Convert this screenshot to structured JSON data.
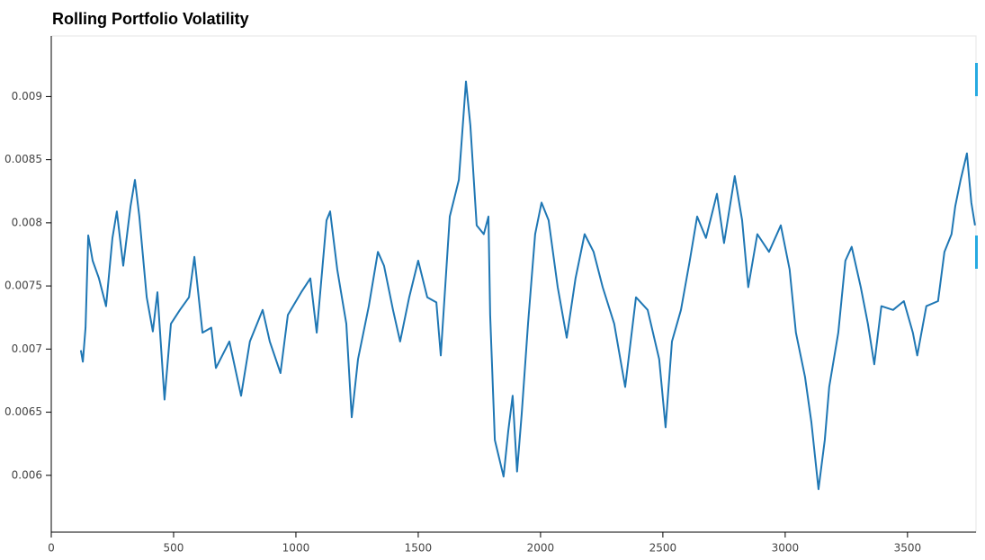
{
  "chart_data": {
    "type": "line",
    "title": "Rolling Portfolio Volatility",
    "x": [
      121,
      129,
      140,
      151,
      169,
      195,
      224,
      250,
      268,
      294,
      324,
      342,
      360,
      390,
      415,
      434,
      463,
      489,
      526,
      563,
      585,
      618,
      654,
      673,
      728,
      776,
      812,
      864,
      893,
      937,
      967,
      1022,
      1059,
      1085,
      1125,
      1140,
      1169,
      1206,
      1228,
      1254,
      1298,
      1335,
      1360,
      1397,
      1426,
      1463,
      1500,
      1537,
      1574,
      1592,
      1629,
      1666,
      1695,
      1713,
      1739,
      1768,
      1787,
      1794,
      1813,
      1849,
      1868,
      1886,
      1904,
      1923,
      1949,
      1978,
      2004,
      2033,
      2070,
      2107,
      2143,
      2180,
      2217,
      2254,
      2301,
      2346,
      2390,
      2438,
      2485,
      2511,
      2537,
      2574,
      2610,
      2640,
      2676,
      2721,
      2750,
      2794,
      2824,
      2849,
      2886,
      2934,
      2982,
      3018,
      3044,
      3081,
      3107,
      3136,
      3162,
      3180,
      3217,
      3246,
      3272,
      3309,
      3338,
      3364,
      3393,
      3441,
      3485,
      3522,
      3540,
      3577,
      3625,
      3651,
      3680,
      3695,
      3717,
      3743,
      3761,
      3776
    ],
    "series": [
      {
        "color": "#1f77b4",
        "values": [
          0.00699,
          0.0069,
          0.00717,
          0.0079,
          0.0077,
          0.00756,
          0.00734,
          0.00788,
          0.00809,
          0.00766,
          0.00813,
          0.00834,
          0.00805,
          0.00741,
          0.00714,
          0.00745,
          0.0066,
          0.0072,
          0.00731,
          0.00741,
          0.00773,
          0.00713,
          0.00717,
          0.00685,
          0.00706,
          0.00663,
          0.00706,
          0.00731,
          0.00706,
          0.00681,
          0.00727,
          0.00745,
          0.00756,
          0.00713,
          0.00802,
          0.00809,
          0.00763,
          0.0072,
          0.00646,
          0.00692,
          0.00734,
          0.00777,
          0.00766,
          0.00731,
          0.00706,
          0.00741,
          0.0077,
          0.00741,
          0.00737,
          0.00695,
          0.00805,
          0.00834,
          0.00912,
          0.00877,
          0.00798,
          0.00791,
          0.00805,
          0.00727,
          0.00628,
          0.00599,
          0.00635,
          0.00663,
          0.00603,
          0.00649,
          0.0072,
          0.00791,
          0.00816,
          0.00802,
          0.00749,
          0.00709,
          0.00756,
          0.00791,
          0.00777,
          0.00749,
          0.0072,
          0.0067,
          0.00741,
          0.00731,
          0.00692,
          0.00638,
          0.00706,
          0.00731,
          0.0077,
          0.00805,
          0.00788,
          0.00823,
          0.00784,
          0.00837,
          0.00802,
          0.00749,
          0.00791,
          0.00777,
          0.00798,
          0.00763,
          0.00713,
          0.00678,
          0.00642,
          0.00589,
          0.00628,
          0.0067,
          0.00713,
          0.0077,
          0.00781,
          0.00749,
          0.0072,
          0.00688,
          0.00734,
          0.00731,
          0.00738,
          0.00713,
          0.00695,
          0.00734,
          0.00738,
          0.00777,
          0.00791,
          0.00813,
          0.00834,
          0.00855,
          0.00816,
          0.00798
        ]
      }
    ],
    "xlim": [
      0,
      3780
    ],
    "xticks": [
      0,
      500,
      1000,
      1500,
      2000,
      2500,
      3000,
      3500
    ],
    "ylim": [
      0.00555,
      0.00948
    ],
    "yticks": [
      0.006,
      0.0065,
      0.007,
      0.0075,
      0.008,
      0.0085,
      0.009
    ]
  }
}
